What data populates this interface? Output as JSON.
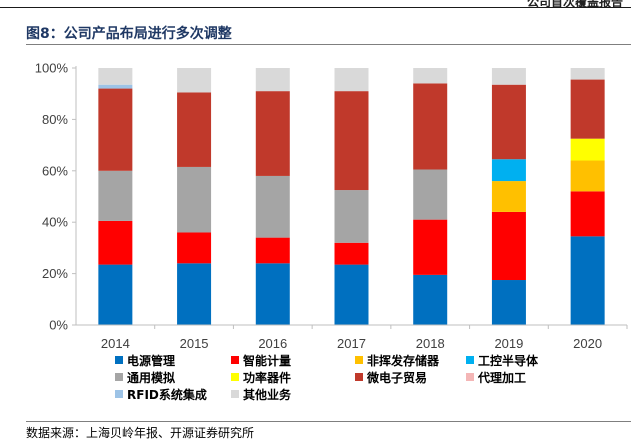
{
  "page": {
    "header_text": "公司首次覆盖报告",
    "figure_title": "图8：公司产品布局进行多次调整",
    "source": "数据来源：上海贝岭年报、开源证券研究所"
  },
  "chart_data": {
    "type": "bar",
    "stacked": true,
    "categories": [
      "2014",
      "2015",
      "2016",
      "2017",
      "2018",
      "2019",
      "2020"
    ],
    "ylim": [
      0,
      100
    ],
    "yticks": [
      "0%",
      "20%",
      "40%",
      "60%",
      "80%",
      "100%"
    ],
    "grid": false,
    "legend_position": "bottom",
    "series": [
      {
        "name": "电源管理",
        "color": "#0070c0",
        "values": [
          23.5,
          24.0,
          24.0,
          23.5,
          19.5,
          17.5,
          34.5
        ]
      },
      {
        "name": "智能计量",
        "color": "#ff0000",
        "values": [
          17.0,
          12.0,
          10.0,
          8.5,
          21.5,
          26.5,
          17.5
        ]
      },
      {
        "name": "非挥发存储器",
        "color": "#ffc000",
        "values": [
          0,
          0,
          0,
          0,
          0,
          12.0,
          12.0
        ]
      },
      {
        "name": "工控半导体",
        "color": "#00b0f0",
        "values": [
          0,
          0,
          0,
          0,
          0,
          8.5,
          0
        ]
      },
      {
        "name": "通用模拟",
        "color": "#a5a5a5",
        "values": [
          19.5,
          25.5,
          24.0,
          20.5,
          19.5,
          0,
          0
        ]
      },
      {
        "name": "功率器件",
        "color": "#ffff00",
        "values": [
          0,
          0,
          0,
          0,
          0,
          0,
          8.5
        ]
      },
      {
        "name": "微电子贸易",
        "color": "#c0392b",
        "values": [
          32.0,
          29.0,
          33.0,
          38.5,
          33.5,
          29.0,
          23.0
        ]
      },
      {
        "name": "代理加工",
        "color": "#f4b6b6",
        "values": [
          0,
          0,
          0,
          0,
          0,
          0,
          0
        ]
      },
      {
        "name": "RFID系统集成",
        "color": "#9dc3e6",
        "values": [
          1.5,
          0,
          0,
          0,
          0,
          0,
          0
        ]
      },
      {
        "name": "其他业务",
        "color": "#d9d9d9",
        "values": [
          6.5,
          9.5,
          9.0,
          9.0,
          6.0,
          6.5,
          4.5
        ]
      }
    ]
  }
}
